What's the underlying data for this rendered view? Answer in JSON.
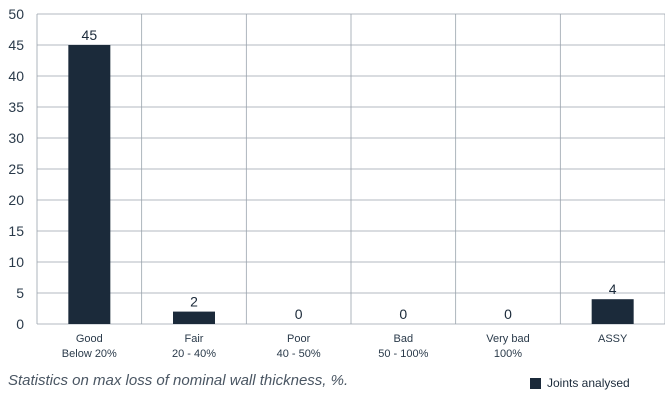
{
  "chart_data": {
    "type": "bar",
    "categories": [
      [
        "Good",
        "Below 20%"
      ],
      [
        "Fair",
        "20 - 40%"
      ],
      [
        "Poor",
        "40 - 50%"
      ],
      [
        "Bad",
        "50 - 100%"
      ],
      [
        "Very bad",
        "100%"
      ],
      [
        "ASSY"
      ]
    ],
    "series": [
      {
        "name": "Joints analysed",
        "values": [
          45,
          2,
          0,
          0,
          0,
          4
        ],
        "color": "#1b2a3a"
      }
    ],
    "ylim": [
      0,
      50
    ],
    "yticks": [
      0,
      5,
      10,
      15,
      20,
      25,
      30,
      35,
      40,
      45,
      50
    ],
    "grid": true,
    "legend_position": "bottom-right",
    "caption": "Statistics on max loss of nominal wall thickness, %."
  }
}
